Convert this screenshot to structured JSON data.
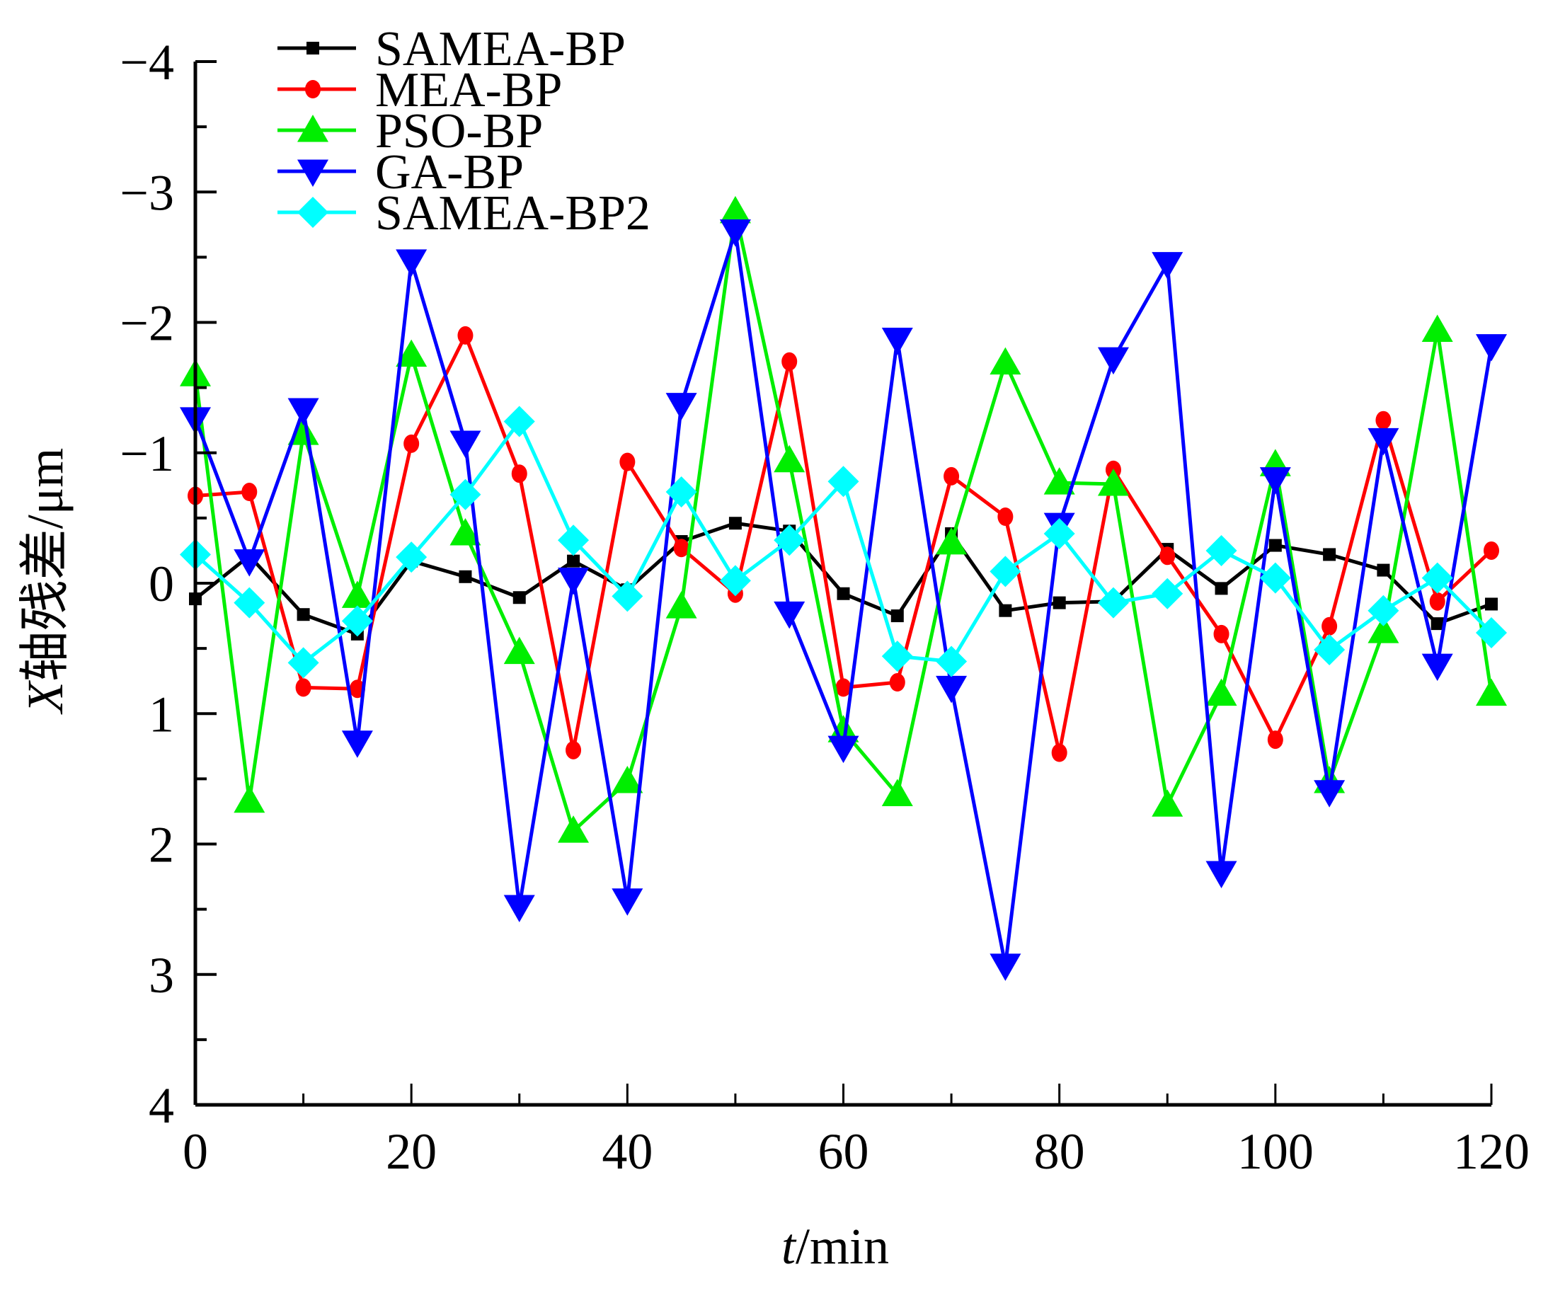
{
  "chart_data": {
    "type": "line",
    "title": "",
    "xlabel_italic": "t",
    "xlabel_rest": "/min",
    "ylabel_italic": "X",
    "ylabel_rest": "轴残差/μm",
    "xlim": [
      0,
      120
    ],
    "ylim": [
      -4,
      4
    ],
    "y_inverted": true,
    "xticks": [
      0,
      20,
      40,
      60,
      80,
      100,
      120
    ],
    "xtick_labels": [
      "0",
      "20",
      "40",
      "60",
      "80",
      "100",
      "120"
    ],
    "yticks": [
      -4,
      -3,
      -2,
      -1,
      0,
      1,
      2,
      3,
      4
    ],
    "ytick_labels": [
      "−4",
      "−3",
      "−2",
      "−1",
      "0",
      "1",
      "2",
      "3",
      "4"
    ],
    "grid": false,
    "legend_position": "top-left",
    "x": [
      0,
      5,
      10,
      15,
      20,
      25,
      30,
      35,
      40,
      45,
      50,
      55,
      60,
      65,
      70,
      75,
      80,
      85,
      90,
      95,
      100,
      105,
      110,
      115,
      120
    ],
    "series": [
      {
        "name": "SAMEA-BP",
        "color": "#000000",
        "marker": "square",
        "values": [
          0.12,
          -0.21,
          0.24,
          0.39,
          -0.17,
          -0.05,
          0.11,
          -0.17,
          0.05,
          -0.32,
          -0.46,
          -0.4,
          0.08,
          0.25,
          -0.38,
          0.21,
          0.15,
          0.14,
          -0.26,
          0.04,
          -0.29,
          -0.22,
          -0.1,
          0.31,
          0.16
        ]
      },
      {
        "name": "MEA-BP",
        "color": "#ff0000",
        "marker": "circle",
        "values": [
          -0.67,
          -0.7,
          0.8,
          0.81,
          -1.07,
          -1.9,
          -0.84,
          1.28,
          -0.93,
          -0.27,
          0.08,
          -1.7,
          0.8,
          0.76,
          -0.82,
          -0.51,
          1.3,
          -0.87,
          -0.21,
          0.39,
          1.2,
          0.33,
          -1.25,
          0.14,
          -0.25
        ]
      },
      {
        "name": "PSO-BP",
        "color": "#00ee00",
        "marker": "triangle-up",
        "values": [
          -1.6,
          1.67,
          -1.15,
          0.1,
          -1.75,
          -0.38,
          0.53,
          1.9,
          1.52,
          0.18,
          -2.85,
          -0.94,
          1.13,
          1.62,
          -0.31,
          -1.69,
          -0.77,
          -0.76,
          1.7,
          0.85,
          -0.91,
          1.52,
          0.37,
          -1.94,
          0.85
        ]
      },
      {
        "name": "GA-BP",
        "color": "#0000ff",
        "marker": "triangle-down",
        "values": [
          -1.26,
          -0.17,
          -1.33,
          1.22,
          -2.47,
          -1.08,
          2.48,
          -0.03,
          2.43,
          -1.37,
          -2.7,
          0.23,
          1.26,
          -1.87,
          0.8,
          2.93,
          -0.45,
          -1.72,
          -2.45,
          2.22,
          -0.8,
          1.6,
          -1.1,
          0.63,
          -1.82
        ]
      },
      {
        "name": "SAMEA-BP2",
        "color": "#00ffff",
        "marker": "diamond",
        "values": [
          -0.22,
          0.15,
          0.61,
          0.29,
          -0.2,
          -0.68,
          -1.24,
          -0.33,
          0.1,
          -0.7,
          -0.02,
          -0.33,
          -0.78,
          0.56,
          0.6,
          -0.09,
          -0.38,
          0.15,
          0.08,
          -0.25,
          -0.04,
          0.51,
          0.21,
          -0.04,
          0.38
        ]
      }
    ]
  }
}
